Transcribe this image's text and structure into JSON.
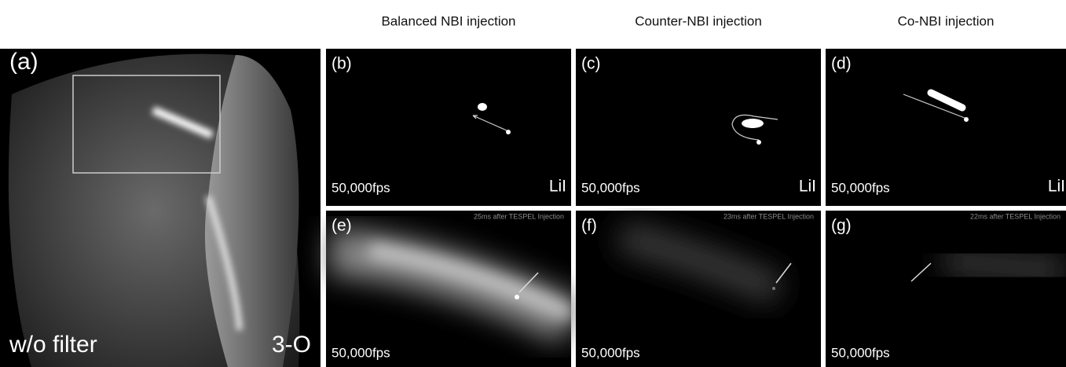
{
  "headers": [
    "Balanced NBI injection",
    "Counter-NBI injection",
    "Co-NBI injection"
  ],
  "panels": [
    {
      "label": "(a)",
      "caption": "w/o filter",
      "tag": "3-O"
    },
    {
      "label": "(b)",
      "frame_rate": "50,000fps",
      "tag": "LiI"
    },
    {
      "label": "(c)",
      "frame_rate": "50,000fps",
      "tag": "LiI"
    },
    {
      "label": "(d)",
      "frame_rate": "50,000fps",
      "tag": "LiI"
    },
    {
      "label": "(e)",
      "frame_rate": "50,000fps",
      "note": "25ms after TESPEL Injection"
    },
    {
      "label": "(f)",
      "frame_rate": "50,000fps",
      "note": "23ms after TESPEL Injection"
    },
    {
      "label": "(g)",
      "frame_rate": "50,000fps",
      "note": "22ms after TESPEL Injection"
    }
  ]
}
